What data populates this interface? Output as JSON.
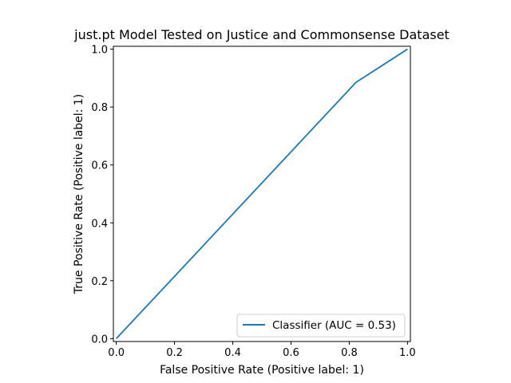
{
  "chart_data": {
    "type": "line",
    "title": "just.pt Model Tested on Justice and Commonsense Dataset",
    "xlabel": "False Positive Rate (Positive label: 1)",
    "ylabel": "True Positive Rate (Positive label: 1)",
    "xlim": [
      -0.01,
      1.01
    ],
    "ylim": [
      -0.01,
      1.01
    ],
    "xticks": [
      0.0,
      0.2,
      0.4,
      0.6,
      0.8,
      1.0
    ],
    "yticks": [
      0.0,
      0.2,
      0.4,
      0.6,
      0.8,
      1.0
    ],
    "xtick_labels": [
      "0.0",
      "0.2",
      "0.4",
      "0.6",
      "0.8",
      "1.0"
    ],
    "ytick_labels": [
      "0.0",
      "0.2",
      "0.4",
      "0.6",
      "0.8",
      "1.0"
    ],
    "grid": false,
    "legend_position": "lower-right",
    "series": [
      {
        "name": "Classifier (AUC = 0.53)",
        "color": "#1f77b4",
        "x": [
          0.0,
          0.823,
          1.0
        ],
        "y": [
          0.0,
          0.885,
          1.0
        ]
      }
    ]
  }
}
